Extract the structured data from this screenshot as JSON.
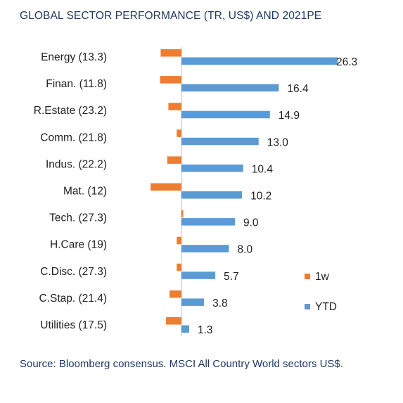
{
  "colors": {
    "one_week": "#ED7D31",
    "ytd": "#5B9BD5",
    "axis": "#bfbfbf",
    "title": "#1f3864"
  },
  "chart_data": {
    "type": "bar",
    "orientation": "horizontal",
    "title": "GLOBAL SECTOR PERFORMANCE (TR, US$) AND 2021PE",
    "categories": [
      "Energy (13.3)",
      "Finan. (11.8)",
      "R.Estate (23.2)",
      "Comm. (21.8)",
      "Indus. (22.2)",
      "Mat. (12)",
      "Tech. (27.3)",
      "H.Care (19)",
      "C.Disc. (27.3)",
      "C.Stap. (21.4)",
      "Utilities (17.5)"
    ],
    "series": [
      {
        "name": "1w",
        "values": [
          -3.5,
          -3.6,
          -2.2,
          -0.8,
          -2.4,
          -5.2,
          0.3,
          -0.8,
          -0.8,
          -2.0,
          -2.6
        ]
      },
      {
        "name": "YTD",
        "values": [
          26.3,
          16.4,
          14.9,
          13.0,
          10.4,
          10.2,
          9.0,
          8.0,
          5.7,
          3.8,
          1.3
        ]
      }
    ],
    "data_labels": [
      "26.3",
      "16.4",
      "14.9",
      "13.0",
      "10.4",
      "10.2",
      "9.0",
      "8.0",
      "5.7",
      "3.8",
      "1.3"
    ],
    "xlim": [
      -6,
      28
    ],
    "grid": false,
    "legend_position": "lower-right"
  },
  "source": "Source: Bloomberg consensus. MSCI All Country World sectors US$."
}
